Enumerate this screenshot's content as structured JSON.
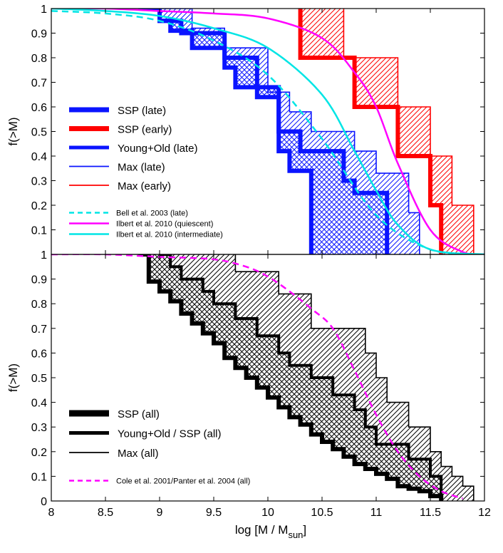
{
  "chart_data": [
    {
      "type": "line",
      "panel": "top",
      "ylabel": "f(>M)",
      "xlim": [
        8,
        12
      ],
      "ylim": [
        0,
        1
      ],
      "yticks": [
        "0.1",
        "0.2",
        "0.3",
        "0.4",
        "0.5",
        "0.6",
        "0.7",
        "0.8",
        "0.9",
        "1"
      ],
      "grid": false,
      "legend_position": "left-middle",
      "series": [
        {
          "name": "SSP (late)",
          "kind": "step",
          "color": "#0a14ff",
          "width": "thick",
          "x": [
            8.8,
            9.0,
            9.1,
            9.3,
            9.6,
            9.7,
            10.1,
            10.2,
            10.4,
            10.4
          ],
          "y": [
            1.0,
            0.95,
            0.91,
            0.84,
            0.76,
            0.68,
            0.42,
            0.34,
            0.0,
            0.0
          ]
        },
        {
          "name": "SSP (early)",
          "kind": "step",
          "color": "#ff0000",
          "width": "thick",
          "x": [
            10.3,
            10.3,
            10.8,
            11.2,
            11.5,
            11.6,
            11.6
          ],
          "y": [
            1.0,
            0.8,
            0.6,
            0.4,
            0.2,
            0.0,
            0.0
          ]
        },
        {
          "name": "Young+Old (late)",
          "kind": "step",
          "color": "#0a14ff",
          "width": "thick",
          "x": [
            8.8,
            9.0,
            9.2,
            9.6,
            9.9,
            10.1,
            10.3,
            10.7,
            10.8,
            11.1,
            11.1
          ],
          "y": [
            1.0,
            0.95,
            0.9,
            0.8,
            0.64,
            0.5,
            0.42,
            0.3,
            0.25,
            0.0,
            0.0
          ]
        },
        {
          "name": "Max (late)",
          "kind": "step",
          "color": "#0a14ff",
          "width": "thin",
          "x": [
            9.0,
            9.3,
            9.6,
            10.0,
            10.2,
            10.4,
            10.8,
            11.0,
            11.3,
            11.4,
            11.4
          ],
          "y": [
            1.0,
            0.92,
            0.84,
            0.66,
            0.58,
            0.5,
            0.42,
            0.33,
            0.17,
            0.0,
            0.0
          ]
        },
        {
          "name": "Max (early)",
          "kind": "step",
          "color": "#ff0000",
          "width": "thin",
          "x": [
            10.7,
            10.7,
            11.2,
            11.5,
            11.7,
            11.9,
            11.9
          ],
          "y": [
            1.0,
            0.8,
            0.6,
            0.4,
            0.2,
            0.0,
            0.0
          ]
        },
        {
          "name": "Bell et al. 2003 (late)",
          "kind": "dashed",
          "color": "#00e5e5",
          "x": [
            8.0,
            8.5,
            9.0,
            9.5,
            10.0,
            10.5,
            11.0,
            11.5,
            12.0
          ],
          "y": [
            0.99,
            0.98,
            0.95,
            0.87,
            0.73,
            0.47,
            0.16,
            0.02,
            0.0
          ]
        },
        {
          "name": "Ilbert et al. 2010 (quiescent)",
          "kind": "solid",
          "color": "#ff00ff",
          "x": [
            8.0,
            8.5,
            9.0,
            9.5,
            10.0,
            10.5,
            10.8,
            11.0,
            11.2,
            11.5,
            11.8,
            12.0
          ],
          "y": [
            1.0,
            1.0,
            0.99,
            0.98,
            0.96,
            0.88,
            0.74,
            0.6,
            0.37,
            0.1,
            0.01,
            0.0
          ]
        },
        {
          "name": "Ilbert et al. 2010 (intermediate)",
          "kind": "solid",
          "color": "#00e5e5",
          "x": [
            8.0,
            8.5,
            9.0,
            9.5,
            10.0,
            10.5,
            10.8,
            11.0,
            11.2,
            11.5,
            12.0
          ],
          "y": [
            1.0,
            0.99,
            0.97,
            0.92,
            0.84,
            0.65,
            0.42,
            0.26,
            0.12,
            0.02,
            0.0
          ]
        }
      ],
      "hatched_regions": [
        {
          "color": "#0a14ff",
          "pattern": "crosshatch",
          "between": [
            "SSP (late)",
            "Young+Old (late)"
          ]
        },
        {
          "color": "#0a14ff",
          "pattern": "diagonal",
          "between": [
            "Young+Old (late)",
            "Max (late)"
          ]
        },
        {
          "color": "#ff0000",
          "pattern": "diagonal",
          "between": [
            "SSP (early)",
            "Max (early)"
          ]
        }
      ],
      "legend": [
        {
          "label": "SSP (late)",
          "color": "#0a14ff",
          "style": "solid",
          "width": "thick",
          "size": "big"
        },
        {
          "label": "SSP (early)",
          "color": "#ff0000",
          "style": "solid",
          "width": "thick",
          "size": "big"
        },
        {
          "label": "Young+Old (late)",
          "color": "#0a14ff",
          "style": "solid",
          "width": "medium",
          "size": "big"
        },
        {
          "label": "Max (late)",
          "color": "#0a14ff",
          "style": "solid",
          "width": "thin",
          "size": "big"
        },
        {
          "label": "Max (early)",
          "color": "#ff0000",
          "style": "solid",
          "width": "thin",
          "size": "big"
        },
        {
          "label": "Bell et al. 2003 (late)",
          "color": "#00e5e5",
          "style": "dashed",
          "width": "medium",
          "size": "small"
        },
        {
          "label": "Ilbert et al. 2010 (quiescent)",
          "color": "#ff00ff",
          "style": "solid",
          "width": "medium",
          "size": "small"
        },
        {
          "label": "Ilbert et al. 2010 (intermediate)",
          "color": "#00e5e5",
          "style": "solid",
          "width": "medium",
          "size": "small"
        }
      ]
    },
    {
      "type": "line",
      "panel": "bottom",
      "ylabel": "f(>M)",
      "xlabel": "log [M / M",
      "xlabel_sub": "sun",
      "xlabel_end": "]",
      "xlim": [
        8,
        12
      ],
      "ylim": [
        0,
        1
      ],
      "xticks": [
        "8",
        "8.5",
        "9",
        "9.5",
        "10",
        "10.5",
        "11",
        "11.5",
        "12"
      ],
      "yticks": [
        "0",
        "0.1",
        "0.2",
        "0.3",
        "0.4",
        "0.5",
        "0.6",
        "0.7",
        "0.8",
        "0.9",
        "1"
      ],
      "grid": false,
      "legend_position": "bottom-left",
      "series": [
        {
          "name": "SSP (all)",
          "kind": "step",
          "color": "#000000",
          "width": "thick",
          "x": [
            8.8,
            8.9,
            9.0,
            9.1,
            9.2,
            9.3,
            9.4,
            9.5,
            9.6,
            9.7,
            9.8,
            9.9,
            10.0,
            10.1,
            10.2,
            10.3,
            10.4,
            10.5,
            10.6,
            10.7,
            10.8,
            10.9,
            11.0,
            11.1,
            11.2,
            11.3,
            11.4,
            11.5,
            11.6,
            11.6
          ],
          "y": [
            1.0,
            0.89,
            0.85,
            0.81,
            0.76,
            0.72,
            0.68,
            0.64,
            0.58,
            0.54,
            0.5,
            0.46,
            0.42,
            0.38,
            0.34,
            0.31,
            0.27,
            0.24,
            0.21,
            0.18,
            0.15,
            0.13,
            0.11,
            0.09,
            0.06,
            0.05,
            0.04,
            0.02,
            0.0,
            0.0
          ]
        },
        {
          "name": "Young+Old / SSP (all)",
          "kind": "step",
          "color": "#000000",
          "width": "medium",
          "x": [
            9.0,
            9.1,
            9.2,
            9.4,
            9.5,
            9.7,
            9.9,
            10.1,
            10.2,
            10.4,
            10.6,
            10.8,
            10.9,
            11.0,
            11.3,
            11.5,
            11.6,
            11.6
          ],
          "y": [
            1.0,
            0.95,
            0.9,
            0.85,
            0.8,
            0.74,
            0.67,
            0.6,
            0.55,
            0.5,
            0.43,
            0.37,
            0.3,
            0.23,
            0.17,
            0.1,
            0.03,
            0.0
          ]
        },
        {
          "name": "Max (all)",
          "kind": "step",
          "color": "#000000",
          "width": "thin",
          "x": [
            9.7,
            9.7,
            10.1,
            10.4,
            10.9,
            11.0,
            11.1,
            11.3,
            11.5,
            11.6,
            11.7,
            11.8,
            11.9,
            11.9
          ],
          "y": [
            1.0,
            0.93,
            0.84,
            0.7,
            0.6,
            0.5,
            0.4,
            0.3,
            0.2,
            0.14,
            0.1,
            0.06,
            0.03,
            0.0
          ]
        },
        {
          "name": "Cole et al. 2001/Panter et al. 2004 (all)",
          "kind": "dashed",
          "color": "#ff00ff",
          "x": [
            8.0,
            8.5,
            9.0,
            9.5,
            9.8,
            10.0,
            10.2,
            10.4,
            10.6,
            10.8,
            11.0,
            11.2,
            11.4,
            11.6,
            11.8
          ],
          "y": [
            1.0,
            1.0,
            0.99,
            0.98,
            0.95,
            0.91,
            0.85,
            0.78,
            0.7,
            0.53,
            0.35,
            0.2,
            0.1,
            0.04,
            0.01
          ]
        }
      ],
      "hatched_regions": [
        {
          "color": "#000000",
          "pattern": "crosshatch",
          "between": [
            "SSP (all)",
            "Young+Old / SSP (all)"
          ]
        },
        {
          "color": "#000000",
          "pattern": "diagonal",
          "between": [
            "Young+Old / SSP (all)",
            "Max (all)"
          ]
        }
      ],
      "legend": [
        {
          "label": "SSP (all)",
          "color": "#000000",
          "style": "solid",
          "width": "thick",
          "size": "big"
        },
        {
          "label": "Young+Old / SSP (all)",
          "color": "#000000",
          "style": "solid",
          "width": "medium",
          "size": "big"
        },
        {
          "label": "Max (all)",
          "color": "#000000",
          "style": "solid",
          "width": "thin",
          "size": "big"
        },
        {
          "label": "Cole et al. 2001/Panter et al. 2004 (all)",
          "color": "#ff00ff",
          "style": "dashed",
          "width": "medium",
          "size": "small"
        }
      ]
    }
  ]
}
